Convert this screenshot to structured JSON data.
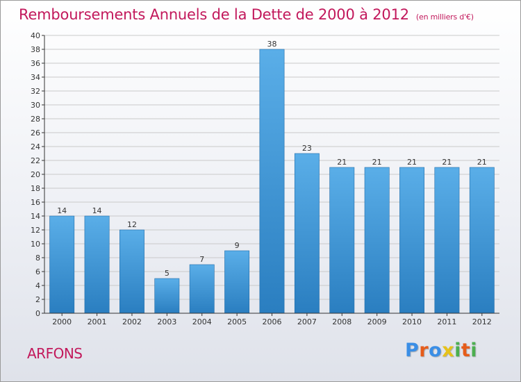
{
  "header": {
    "title": "Remboursements Annuels de la Dette de 2000 à 2012",
    "unit_note": "(en milliers d'€)"
  },
  "place_name": "ARFONS",
  "logo": {
    "letters": [
      "P",
      "r",
      "o",
      "x",
      "i",
      "t",
      "i"
    ],
    "colors": [
      "#3a8ee6",
      "#e65c1a",
      "#3a8ee6",
      "#e6c21a",
      "#4caf50",
      "#e65c1a",
      "#4caf50"
    ]
  },
  "chart_data": {
    "type": "bar",
    "title": "Remboursements Annuels de la Dette de 2000 à 2012",
    "categories": [
      "2000",
      "2001",
      "2002",
      "2003",
      "2004",
      "2005",
      "2006",
      "2007",
      "2008",
      "2009",
      "2010",
      "2011",
      "2012"
    ],
    "values": [
      14,
      14,
      12,
      5,
      7,
      9,
      38,
      23,
      21,
      21,
      21,
      21,
      21
    ],
    "data_labels": [
      "14",
      "14",
      "12",
      "5",
      "7",
      "9",
      "38",
      "23",
      "21",
      "21",
      "21",
      "21",
      "21"
    ],
    "ylim": [
      0,
      40
    ],
    "y_ticks": [
      0,
      2,
      4,
      6,
      8,
      10,
      12,
      14,
      16,
      18,
      20,
      22,
      24,
      26,
      28,
      30,
      32,
      34,
      36,
      38,
      40
    ],
    "y_tick_labels": [
      "0",
      "2",
      "4",
      "6",
      "8",
      "10",
      "12",
      "14",
      "16",
      "18",
      "20",
      "22",
      "24",
      "26",
      "28",
      "30",
      "32",
      "34",
      "36",
      "38",
      "40"
    ],
    "grid": true,
    "colors": {
      "bar_top": "#5aaee8",
      "bar_bottom": "#2a7ec0",
      "grid": "#c9c9c9",
      "axis": "#333333"
    }
  }
}
